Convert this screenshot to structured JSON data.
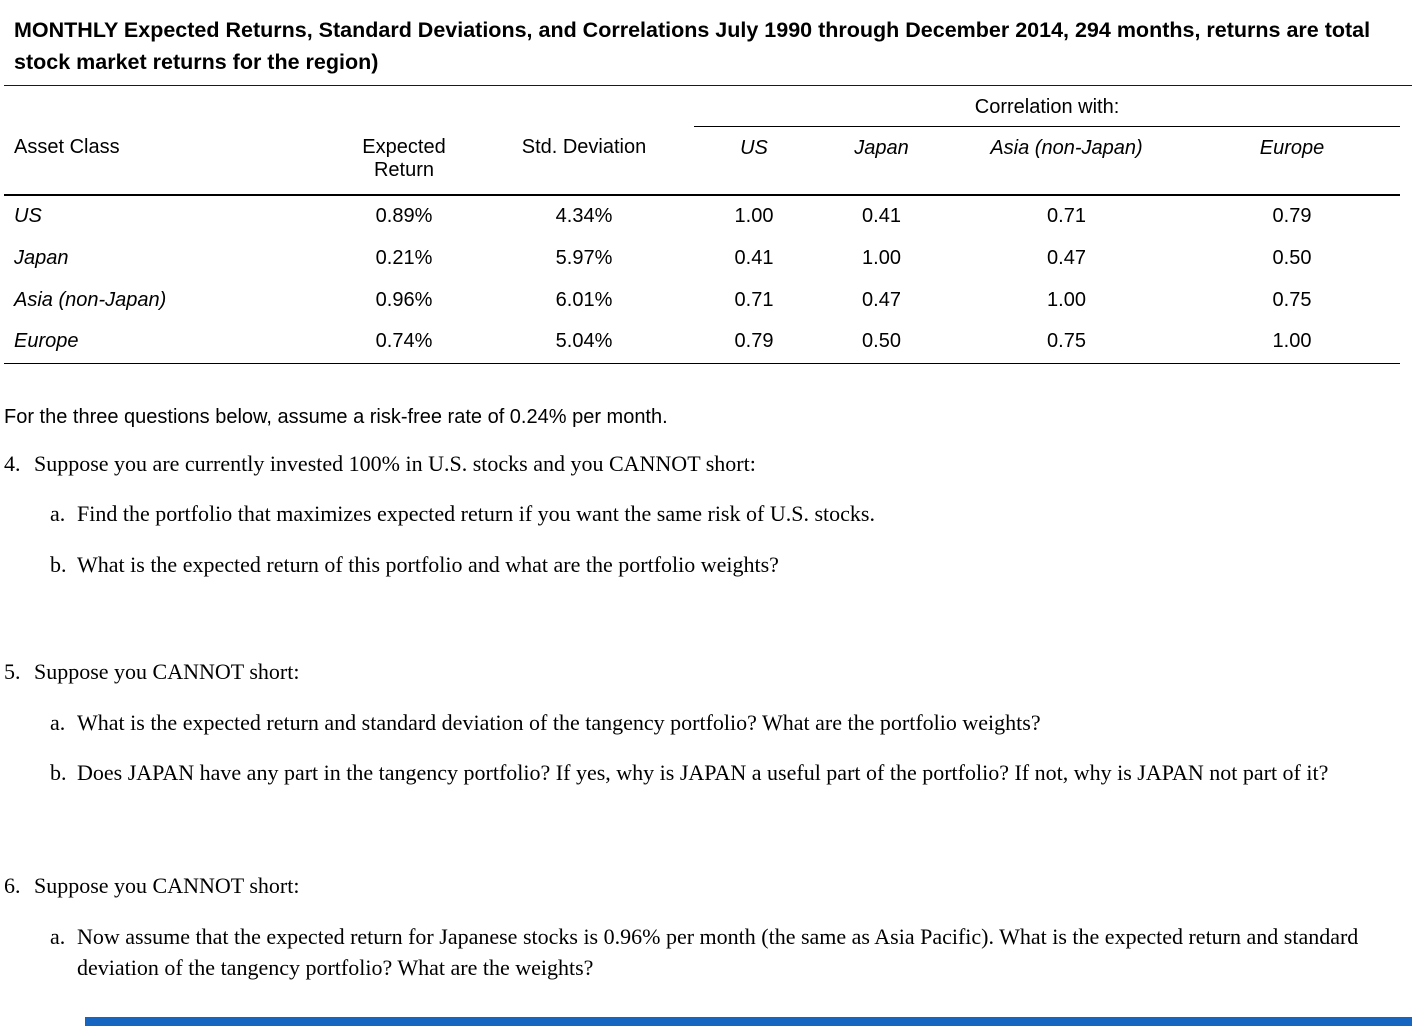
{
  "title": "MONTHLY Expected Returns, Standard Deviations, and Correlations July 1990 through December 2014, 294 months, returns are total stock market returns for the region)",
  "table": {
    "correlation_header": "Correlation with:",
    "columns": [
      "Asset Class",
      "Expected Return",
      "Std. Deviation",
      "US",
      "Japan",
      "Asia (non-Japan)",
      "Europe"
    ],
    "rows": [
      {
        "label": "US",
        "values": [
          "0.89%",
          "4.34%",
          "1.00",
          "0.41",
          "0.71",
          "0.79"
        ]
      },
      {
        "label": "Japan",
        "values": [
          "0.21%",
          "5.97%",
          "0.41",
          "1.00",
          "0.47",
          "0.50"
        ]
      },
      {
        "label": "Asia (non-Japan)",
        "values": [
          "0.96%",
          "6.01%",
          "0.71",
          "0.47",
          "1.00",
          "0.75"
        ]
      },
      {
        "label": "Europe",
        "values": [
          "0.74%",
          "5.04%",
          "0.79",
          "0.50",
          "0.75",
          "1.00"
        ]
      }
    ]
  },
  "intro": "For the three questions below, assume a risk-free rate of 0.24% per month.",
  "questions": [
    {
      "number": "4.",
      "prompt": "Suppose you are currently invested 100% in U.S. stocks and you CANNOT short:",
      "parts": [
        {
          "label": "a.",
          "text": "Find the portfolio that maximizes expected return if you want the same risk of U.S. stocks."
        },
        {
          "label": "b.",
          "text": "What is the expected return of this portfolio and what are the portfolio weights?"
        }
      ]
    },
    {
      "number": "5.",
      "prompt": "Suppose you CANNOT short:",
      "parts": [
        {
          "label": "a.",
          "text": "What is the expected return and standard deviation of the tangency portfolio? What are the portfolio weights?"
        },
        {
          "label": "b.",
          "text": "Does JAPAN have any part in the tangency portfolio? If yes, why is JAPAN a useful part of the portfolio? If not, why is JAPAN not part of it?"
        }
      ]
    },
    {
      "number": "6.",
      "prompt": "Suppose you CANNOT short:",
      "parts": [
        {
          "label": "a.",
          "text": "Now assume that the expected return for Japanese stocks is 0.96% per month (the same as Asia Pacific). What is the expected return and standard deviation of the tangency portfolio? What are the weights?"
        }
      ]
    }
  ],
  "colors": {
    "bottom_bar": "#1665c0"
  }
}
